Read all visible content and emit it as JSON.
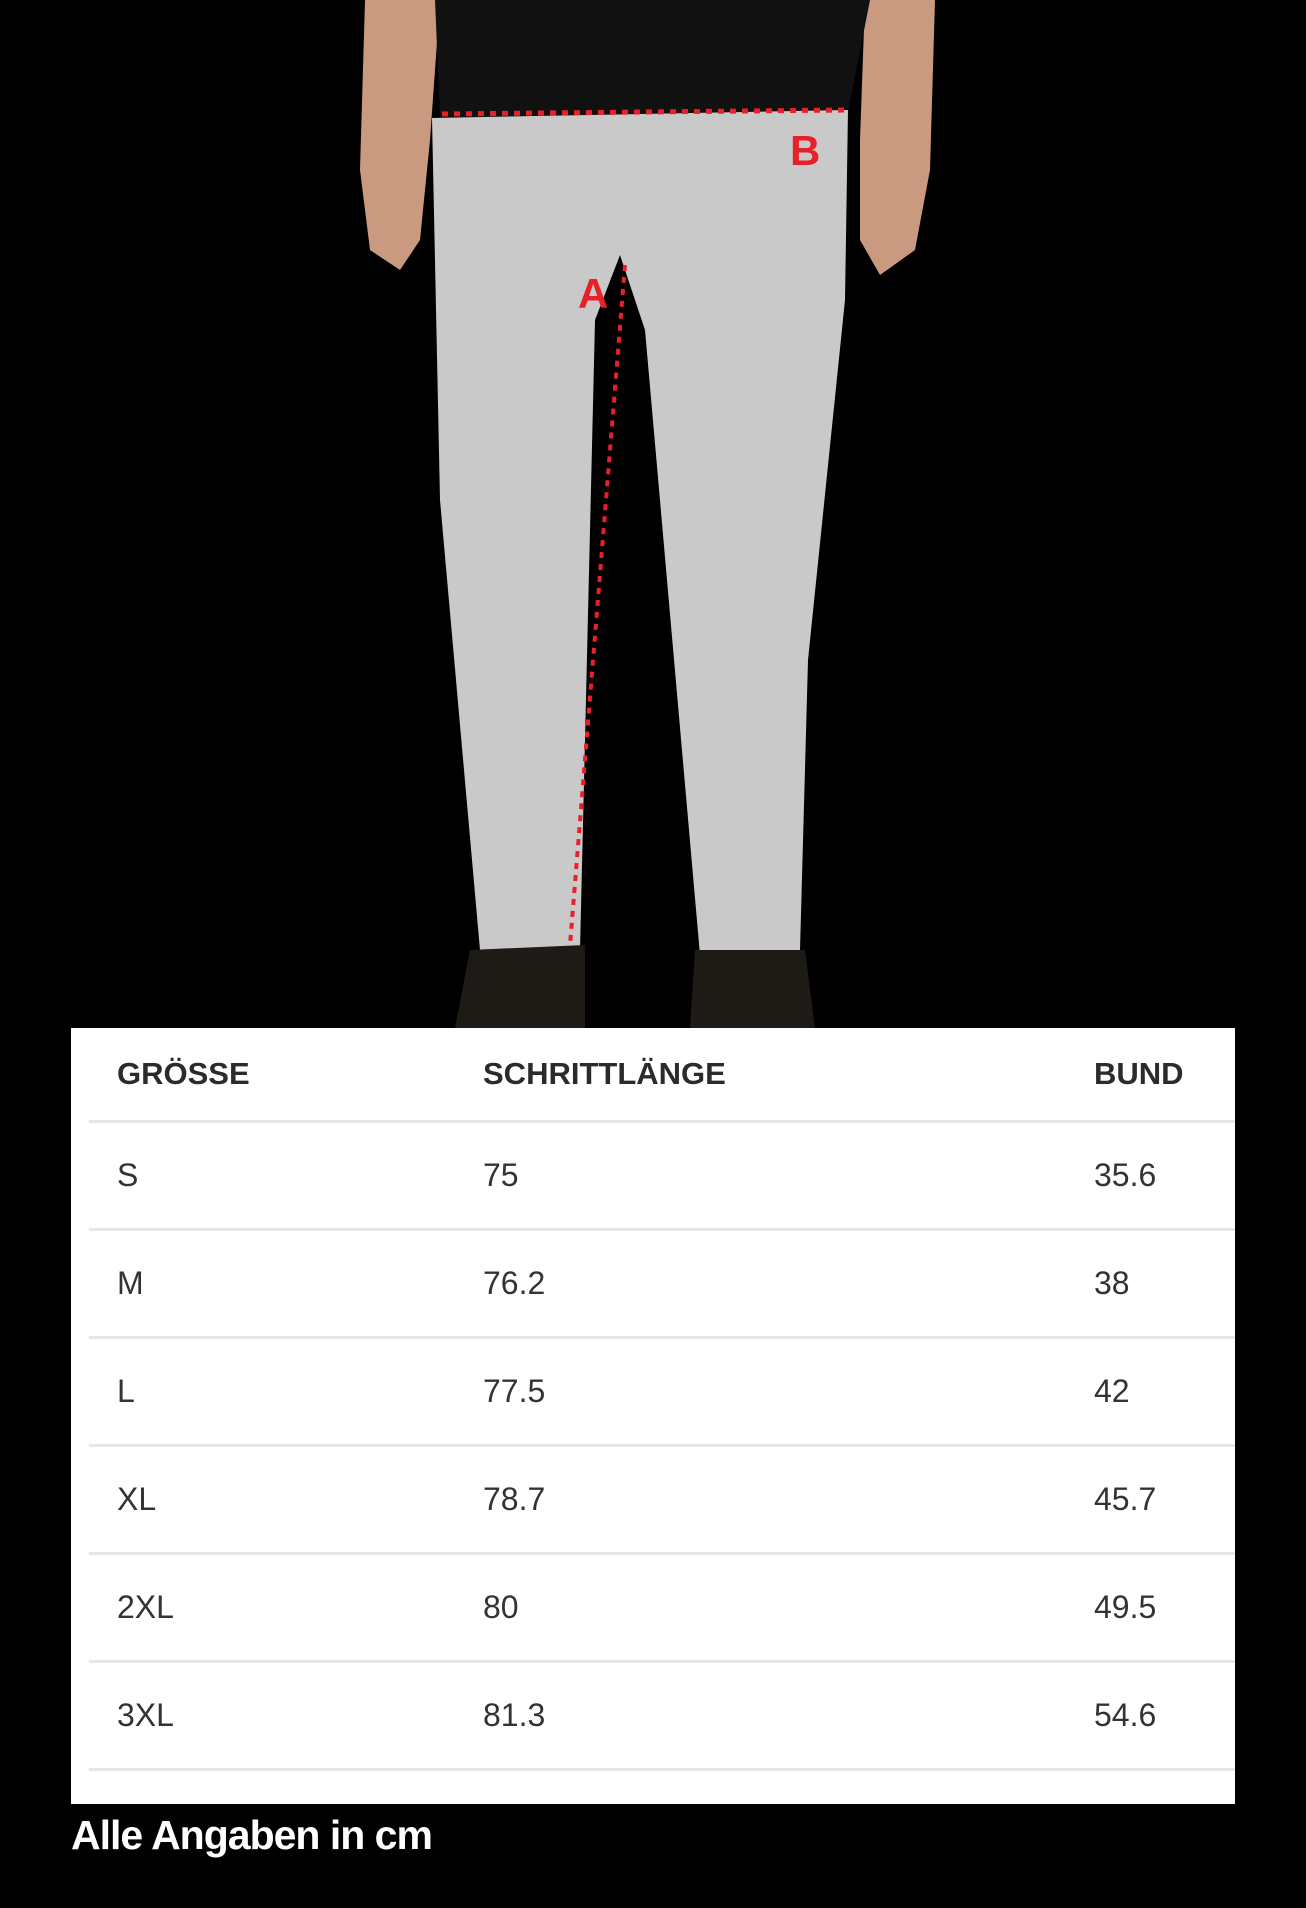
{
  "photo": {
    "markers": [
      "A",
      "B"
    ],
    "marker_color": "#e8202a"
  },
  "table": {
    "headers": [
      "GRÖSSE",
      "SCHRITTLÄNGE",
      "BUND"
    ],
    "rows": [
      [
        "S",
        "75",
        "35.6"
      ],
      [
        "M",
        "76.2",
        "38"
      ],
      [
        "L",
        "77.5",
        "42"
      ],
      [
        "XL",
        "78.7",
        "45.7"
      ],
      [
        "2XL",
        "80",
        "49.5"
      ],
      [
        "3XL",
        "81.3",
        "54.6"
      ]
    ]
  },
  "footer": {
    "note": "Alle Angaben in cm"
  }
}
